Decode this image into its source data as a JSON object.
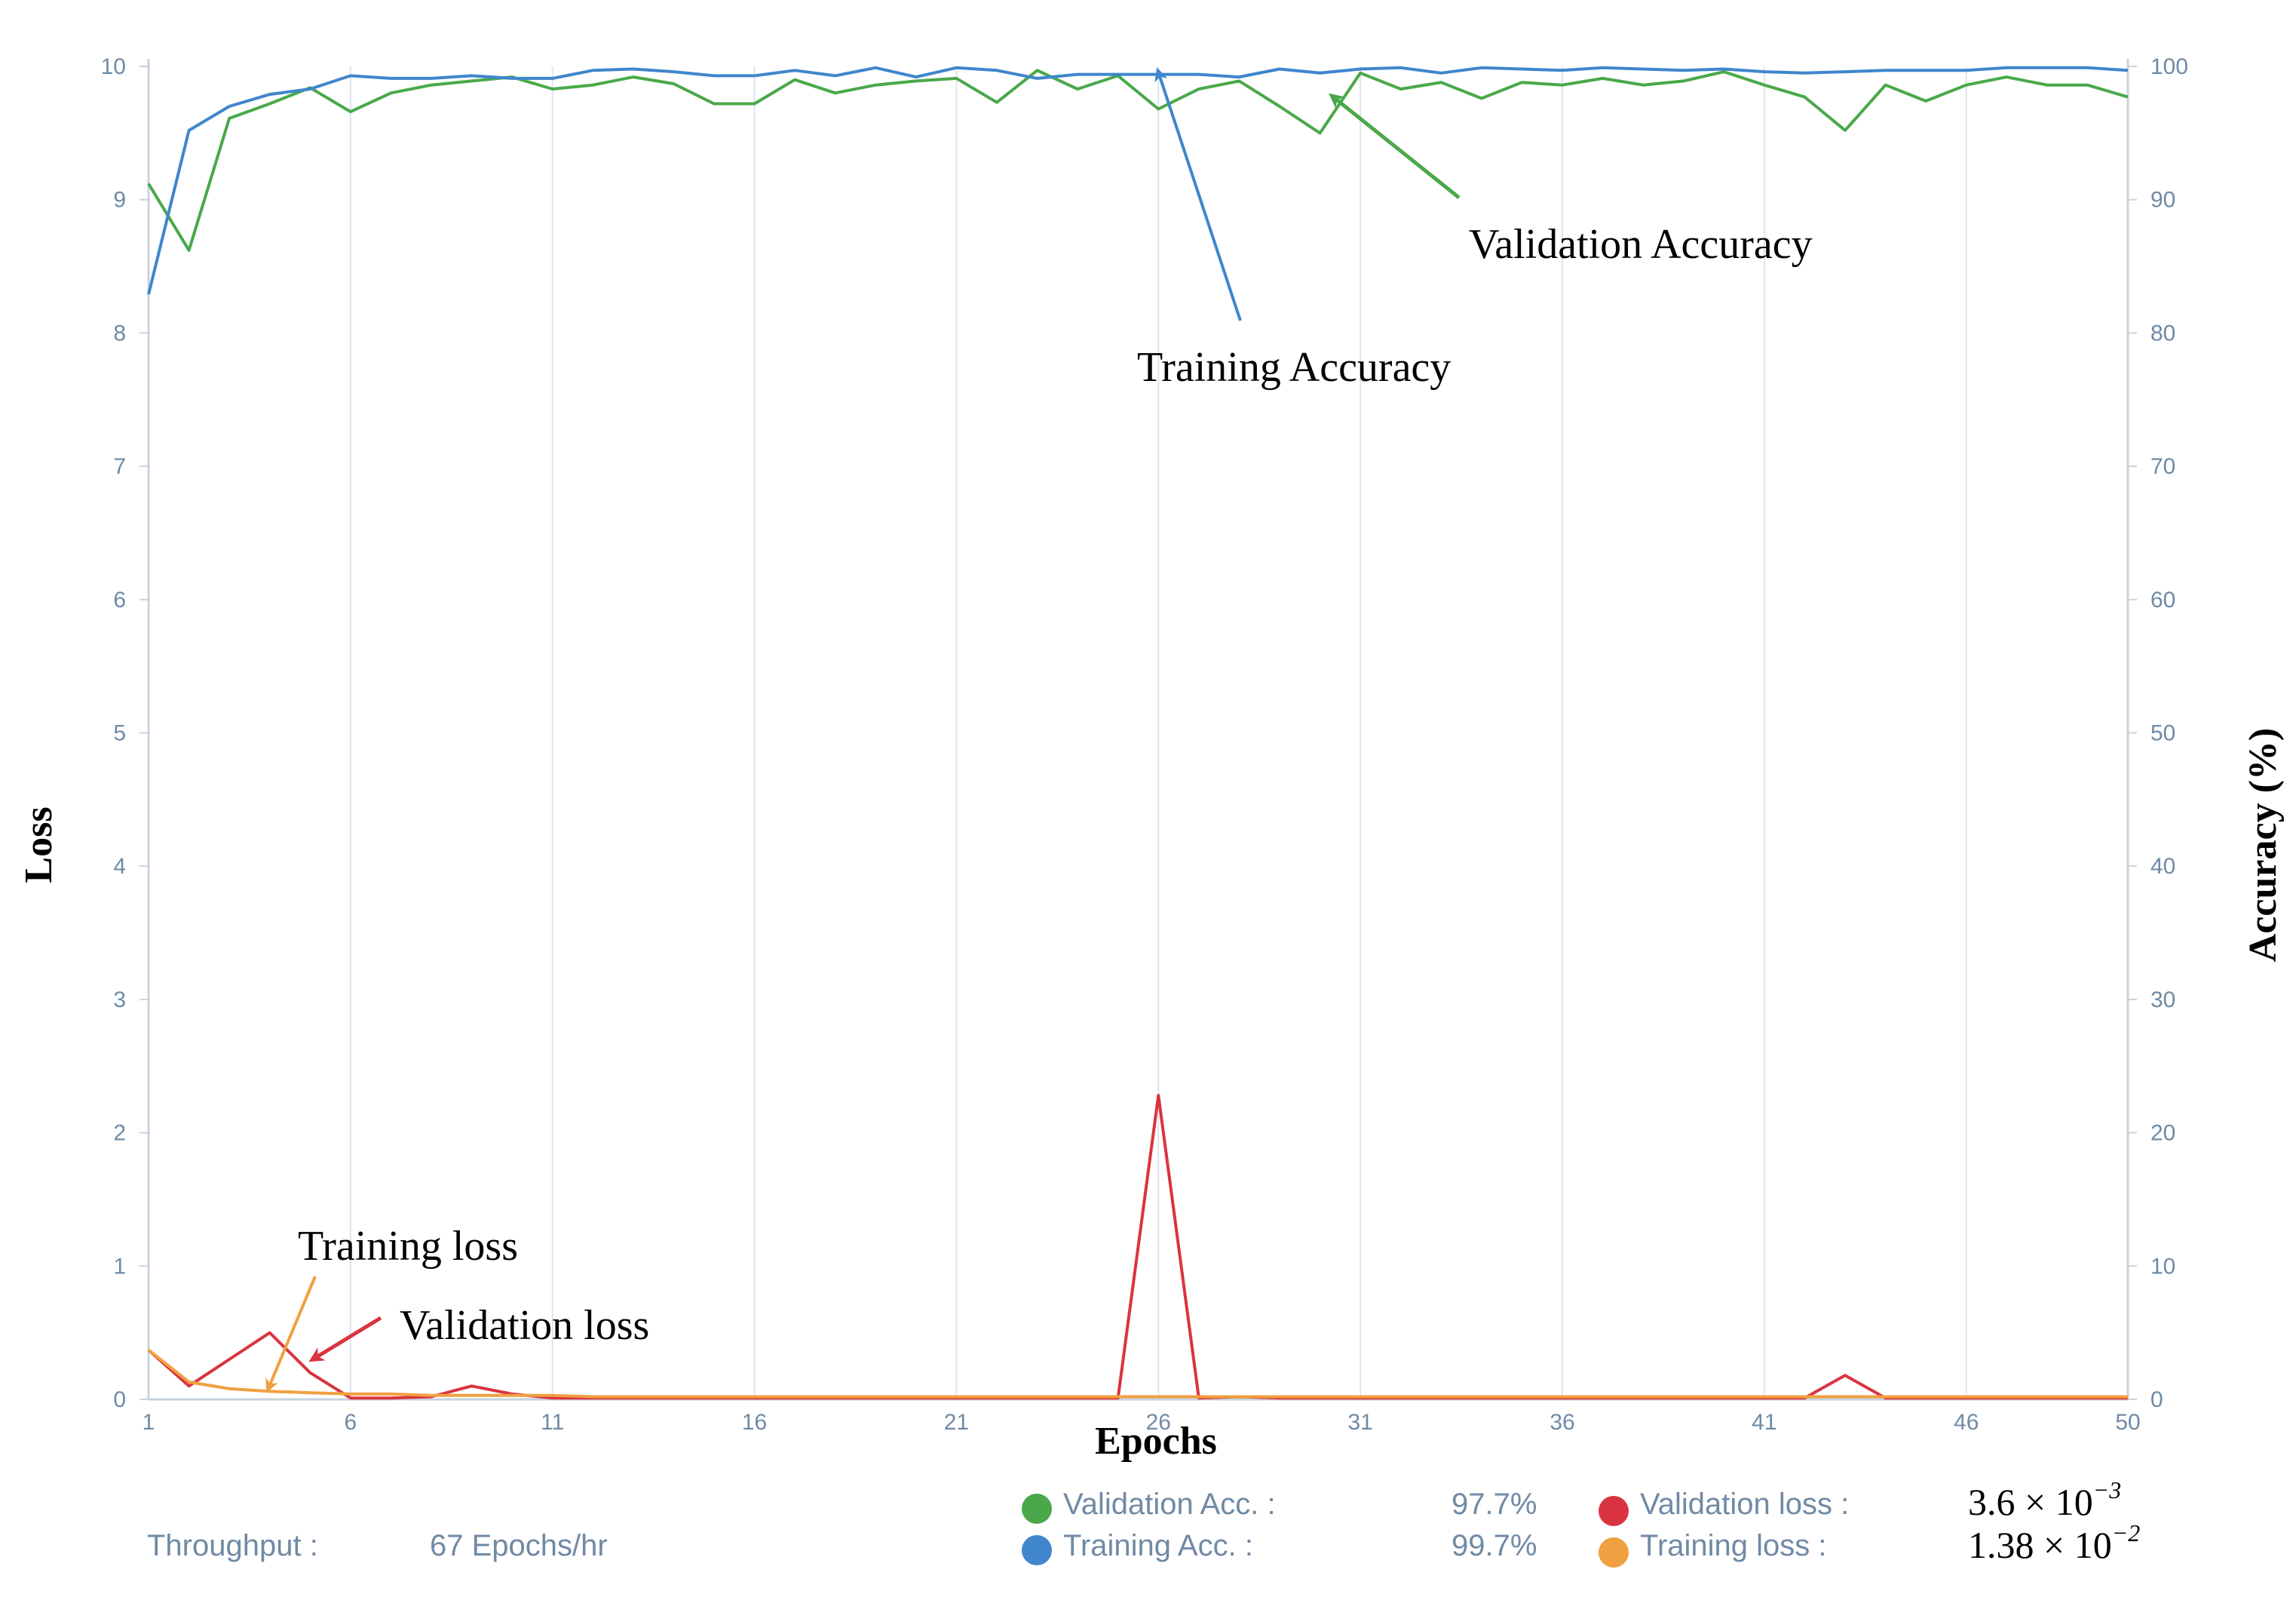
{
  "chart_data": {
    "type": "line",
    "xlabel": "Epochs",
    "ylabel_left": "Loss",
    "ylabel_right": "Accuracy (%)",
    "xlim": [
      1,
      50
    ],
    "ylim_left": [
      0,
      10
    ],
    "ylim_right": [
      0,
      100
    ],
    "x_ticks": [
      "1",
      "6",
      "11",
      "16",
      "21",
      "26",
      "31",
      "36",
      "41",
      "46",
      "50"
    ],
    "y_left_ticks": [
      "0",
      "1",
      "2",
      "3",
      "4",
      "5",
      "6",
      "7",
      "8",
      "9",
      "10"
    ],
    "y_right_ticks": [
      "0",
      "10",
      "20",
      "30",
      "40",
      "50",
      "60",
      "70",
      "80",
      "90",
      "100"
    ],
    "grid": "vertical",
    "series": [
      {
        "name": "Validation Acc.",
        "axis": "right",
        "color": "#4aa84a",
        "x": [
          1,
          2,
          3,
          4,
          5,
          6,
          7,
          8,
          9,
          10,
          11,
          12,
          13,
          14,
          15,
          16,
          17,
          18,
          19,
          20,
          21,
          22,
          23,
          24,
          25,
          26,
          27,
          28,
          29,
          30,
          31,
          32,
          33,
          34,
          35,
          36,
          37,
          38,
          39,
          40,
          41,
          42,
          43,
          44,
          45,
          46,
          47,
          48,
          49,
          50
        ],
        "values": [
          91.2,
          86.2,
          96.1,
          97.2,
          98.4,
          96.6,
          98.0,
          98.6,
          98.9,
          99.2,
          98.3,
          98.6,
          99.2,
          98.7,
          97.2,
          97.2,
          99.0,
          98.0,
          98.6,
          98.9,
          99.1,
          97.3,
          99.7,
          98.3,
          99.3,
          96.8,
          98.3,
          98.9,
          97.0,
          95.0,
          99.5,
          98.3,
          98.8,
          97.6,
          98.8,
          98.6,
          99.1,
          98.6,
          98.9,
          99.6,
          98.6,
          97.7,
          95.2,
          98.6,
          97.4,
          98.6,
          99.2,
          98.6,
          98.6,
          97.7
        ]
      },
      {
        "name": "Training Acc.",
        "axis": "right",
        "color": "#3f86cc",
        "x": [
          1,
          2,
          3,
          4,
          5,
          6,
          7,
          8,
          9,
          10,
          11,
          12,
          13,
          14,
          15,
          16,
          17,
          18,
          19,
          20,
          21,
          22,
          23,
          24,
          25,
          26,
          27,
          28,
          29,
          30,
          31,
          32,
          33,
          34,
          35,
          36,
          37,
          38,
          39,
          40,
          41,
          42,
          43,
          44,
          45,
          46,
          47,
          48,
          49,
          50
        ],
        "values": [
          82.9,
          95.2,
          97.0,
          97.9,
          98.3,
          99.3,
          99.1,
          99.1,
          99.3,
          99.1,
          99.1,
          99.7,
          99.8,
          99.6,
          99.3,
          99.3,
          99.7,
          99.3,
          99.9,
          99.2,
          99.9,
          99.7,
          99.1,
          99.4,
          99.4,
          99.4,
          99.4,
          99.2,
          99.8,
          99.5,
          99.8,
          99.9,
          99.5,
          99.9,
          99.8,
          99.7,
          99.9,
          99.8,
          99.7,
          99.8,
          99.6,
          99.5,
          99.6,
          99.7,
          99.7,
          99.7,
          99.9,
          99.9,
          99.9,
          99.7
        ]
      },
      {
        "name": "Validation loss",
        "axis": "left",
        "color": "#d9343f",
        "x": [
          1,
          2,
          3,
          4,
          5,
          6,
          7,
          8,
          9,
          10,
          11,
          12,
          13,
          14,
          15,
          16,
          17,
          18,
          19,
          20,
          21,
          22,
          23,
          24,
          25,
          26,
          27,
          28,
          29,
          30,
          31,
          32,
          33,
          34,
          35,
          36,
          37,
          38,
          39,
          40,
          41,
          42,
          43,
          44,
          45,
          46,
          47,
          48,
          49,
          50
        ],
        "values": [
          0.37,
          0.1,
          0.3,
          0.5,
          0.2,
          0.01,
          0.01,
          0.02,
          0.1,
          0.04,
          0.01,
          0.01,
          0.01,
          0.01,
          0.01,
          0.01,
          0.01,
          0.01,
          0.01,
          0.01,
          0.01,
          0.01,
          0.01,
          0.01,
          0.01,
          2.28,
          0.01,
          0.02,
          0.01,
          0.01,
          0.01,
          0.01,
          0.01,
          0.01,
          0.01,
          0.01,
          0.01,
          0.01,
          0.01,
          0.01,
          0.01,
          0.01,
          0.18,
          0.01,
          0.01,
          0.01,
          0.01,
          0.01,
          0.01,
          0.01
        ]
      },
      {
        "name": "Training loss",
        "axis": "left",
        "color": "#f0a040",
        "x": [
          1,
          2,
          3,
          4,
          5,
          6,
          7,
          8,
          9,
          10,
          11,
          12,
          13,
          14,
          15,
          16,
          17,
          18,
          19,
          20,
          21,
          22,
          23,
          24,
          25,
          26,
          27,
          28,
          29,
          30,
          31,
          32,
          33,
          34,
          35,
          36,
          37,
          38,
          39,
          40,
          41,
          42,
          43,
          44,
          45,
          46,
          47,
          48,
          49,
          50
        ],
        "values": [
          0.37,
          0.13,
          0.08,
          0.06,
          0.05,
          0.04,
          0.04,
          0.03,
          0.03,
          0.03,
          0.03,
          0.02,
          0.02,
          0.02,
          0.02,
          0.02,
          0.02,
          0.02,
          0.02,
          0.02,
          0.02,
          0.02,
          0.02,
          0.02,
          0.02,
          0.02,
          0.02,
          0.02,
          0.02,
          0.02,
          0.02,
          0.02,
          0.02,
          0.02,
          0.02,
          0.02,
          0.02,
          0.02,
          0.02,
          0.02,
          0.02,
          0.02,
          0.02,
          0.02,
          0.02,
          0.02,
          0.02,
          0.02,
          0.02,
          0.02
        ]
      }
    ],
    "annotations": [
      {
        "text": "Validation Accuracy",
        "series": "Validation Acc.",
        "points_to": [
          30,
          99.5
        ]
      },
      {
        "text": "Training Accuracy",
        "series": "Training Acc.",
        "points_to": [
          26,
          99.6
        ]
      },
      {
        "text": "Training loss",
        "series": "Training loss",
        "points_to": [
          4,
          0.06
        ]
      },
      {
        "text": "Validation loss",
        "series": "Validation loss",
        "points_to": [
          5,
          0.28
        ]
      }
    ]
  },
  "legend": {
    "throughput_label": "Throughput :",
    "throughput_value": "67 Epochs/hr",
    "items": [
      {
        "label": "Validation Acc. :",
        "value": "97.7%",
        "color": "#4aa84a"
      },
      {
        "label": "Training Acc. :",
        "value": "99.7%",
        "color": "#3f86cc"
      },
      {
        "label": "Validation loss :",
        "value_mantissa": "3.6 × 10",
        "value_exponent": "−3",
        "color": "#d9343f"
      },
      {
        "label": "Training loss :",
        "value_mantissa": "1.38 × 10",
        "value_exponent": "−2",
        "color": "#f0a040"
      }
    ]
  }
}
